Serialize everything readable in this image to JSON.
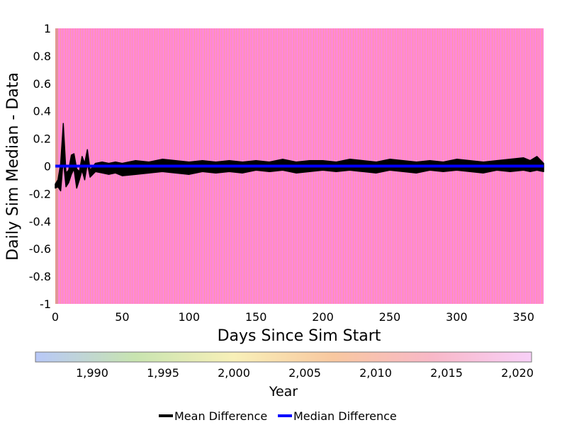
{
  "chart_data": {
    "type": "line",
    "xlabel": "Days Since Sim Start",
    "ylabel": "Daily Sim Median - Data",
    "xlim": [
      0,
      365
    ],
    "ylim": [
      -1,
      1
    ],
    "x_ticks": [
      "0",
      "50",
      "100",
      "150",
      "200",
      "250",
      "300",
      "350"
    ],
    "y_ticks": [
      "1",
      "0.8",
      "0.6",
      "0.4",
      "0.2",
      "0",
      "-0.2",
      "-0.4",
      "-0.6",
      "-0.8",
      "-1"
    ],
    "background_colors": [
      "#ff88d8",
      "#ff9a9a"
    ],
    "colorbar": {
      "title": "Year",
      "range": [
        1986,
        2021
      ],
      "ticks": [
        "1,990",
        "1,995",
        "2,000",
        "2,005",
        "2,010",
        "2,015",
        "2,020"
      ],
      "tick_values": [
        1990,
        1995,
        2000,
        2005,
        2010,
        2015,
        2020
      ],
      "colors": [
        "#b8c8f8",
        "#c8e4b0",
        "#f8f0b8",
        "#f8c8a0",
        "#f8b8c8",
        "#f8d0f8"
      ]
    },
    "legend": {
      "placement": "bottom"
    },
    "series": [
      {
        "name": "Mean Difference",
        "color": "#000000",
        "x": [
          0,
          2,
          4,
          6,
          8,
          10,
          12,
          14,
          16,
          18,
          20,
          22,
          24,
          26,
          30,
          35,
          40,
          45,
          50,
          60,
          70,
          80,
          90,
          100,
          110,
          120,
          130,
          140,
          150,
          160,
          170,
          180,
          190,
          200,
          210,
          220,
          230,
          240,
          250,
          260,
          270,
          280,
          290,
          300,
          310,
          320,
          330,
          340,
          350,
          355,
          360,
          365
        ],
        "upper": [
          -0.13,
          -0.1,
          0.02,
          0.31,
          -0.05,
          -0.03,
          0.08,
          0.09,
          -0.02,
          -0.04,
          0.07,
          0.02,
          0.12,
          -0.03,
          0.02,
          0.03,
          0.02,
          0.03,
          0.02,
          0.04,
          0.03,
          0.05,
          0.04,
          0.03,
          0.04,
          0.03,
          0.04,
          0.03,
          0.04,
          0.03,
          0.05,
          0.03,
          0.04,
          0.04,
          0.03,
          0.05,
          0.04,
          0.03,
          0.05,
          0.04,
          0.03,
          0.04,
          0.03,
          0.05,
          0.04,
          0.03,
          0.04,
          0.05,
          0.06,
          0.04,
          0.07,
          0.02
        ],
        "lower": [
          -0.16,
          -0.15,
          -0.18,
          0.05,
          -0.15,
          -0.12,
          -0.06,
          -0.02,
          -0.16,
          -0.1,
          -0.03,
          -0.1,
          0.02,
          -0.08,
          -0.04,
          -0.05,
          -0.06,
          -0.05,
          -0.07,
          -0.06,
          -0.05,
          -0.04,
          -0.05,
          -0.06,
          -0.04,
          -0.05,
          -0.04,
          -0.05,
          -0.03,
          -0.04,
          -0.03,
          -0.05,
          -0.04,
          -0.03,
          -0.04,
          -0.03,
          -0.04,
          -0.05,
          -0.03,
          -0.04,
          -0.05,
          -0.03,
          -0.04,
          -0.03,
          -0.04,
          -0.05,
          -0.03,
          -0.04,
          -0.03,
          -0.04,
          -0.03,
          -0.04
        ]
      },
      {
        "name": "Median Difference",
        "color": "#0000ff",
        "x": [
          0,
          365
        ],
        "y": [
          0,
          0
        ]
      }
    ]
  }
}
